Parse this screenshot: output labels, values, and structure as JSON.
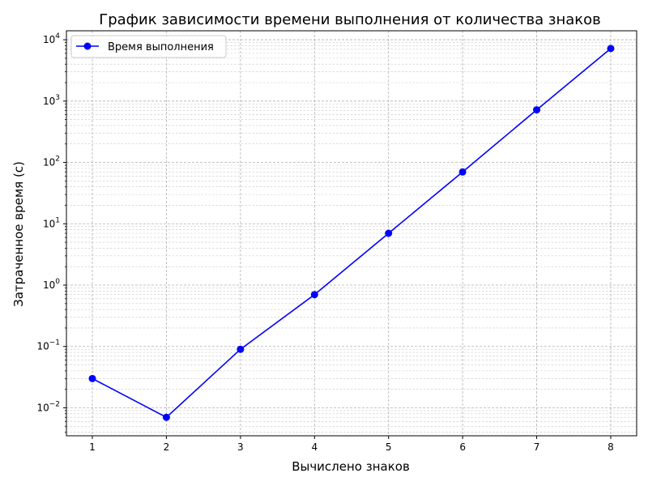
{
  "chart_data": {
    "type": "line",
    "title": "График зависимости времени выполнения от количества знаков",
    "xlabel": "Вычислено знаков",
    "ylabel": "Затраченное время (с)",
    "x": [
      1,
      2,
      3,
      4,
      5,
      6,
      7,
      8
    ],
    "x_ticks": [
      "1",
      "2",
      "3",
      "4",
      "5",
      "6",
      "7",
      "8"
    ],
    "xlim": [
      0.65,
      8.35
    ],
    "yscale": "log",
    "ylim": [
      0.0035,
      14000
    ],
    "y_tick_values": [
      0.01,
      0.1,
      1,
      10,
      100,
      1000,
      10000
    ],
    "y_tick_exponents": [
      "−2",
      "−1",
      "0",
      "1",
      "2",
      "3",
      "4"
    ],
    "y_tick_base": "10",
    "grid": true,
    "grid_minor": true,
    "legend_position": "upper-left",
    "series": [
      {
        "name": "Время выполнения",
        "color": "#0000ff",
        "marker": "circle",
        "values": [
          0.03,
          0.007,
          0.09,
          0.7,
          7.0,
          70.0,
          720.0,
          7200.0
        ]
      }
    ]
  }
}
